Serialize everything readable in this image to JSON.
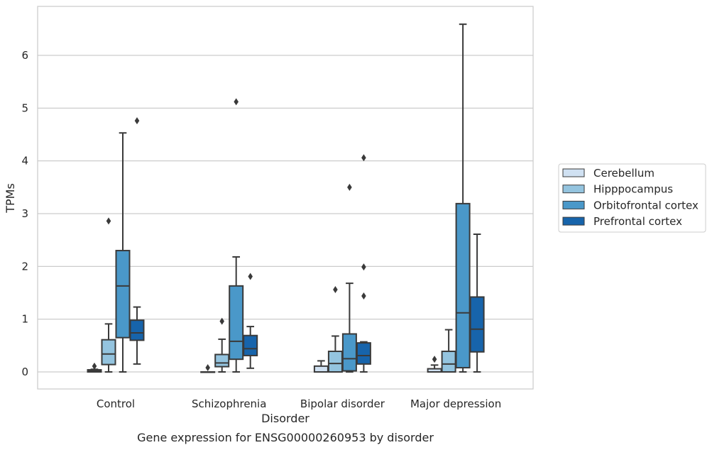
{
  "chart_data": {
    "type": "box",
    "caption": "Gene expression for ENSG00000260953 by disorder",
    "xlabel": "Disorder",
    "ylabel": "TPMs",
    "ylim": [
      -0.32,
      6.9
    ],
    "yticks": [
      0,
      1,
      2,
      3,
      4,
      5,
      6
    ],
    "grid": "horizontal",
    "legend_position": "right",
    "categories": [
      "Control",
      "Schizophrenia",
      "Bipolar disorder",
      "Major depression"
    ],
    "series": [
      {
        "name": "Cerebellum",
        "color": "#d0e1f2",
        "boxes": [
          {
            "whislo": 0.0,
            "q1": 0.0,
            "med": 0.02,
            "q3": 0.04,
            "whishi": 0.05,
            "fliers": [
              0.11
            ]
          },
          {
            "whislo": 0.0,
            "q1": 0.0,
            "med": 0.0,
            "q3": 0.0,
            "whishi": 0.0,
            "fliers": [
              0.08
            ]
          },
          {
            "whislo": 0.0,
            "q1": 0.0,
            "med": 0.0,
            "q3": 0.11,
            "whishi": 0.21,
            "fliers": []
          },
          {
            "whislo": 0.0,
            "q1": 0.0,
            "med": 0.0,
            "q3": 0.06,
            "whishi": 0.13,
            "fliers": [
              0.24
            ]
          }
        ]
      },
      {
        "name": "Hipppocampus",
        "color": "#94c4df",
        "boxes": [
          {
            "whislo": 0.0,
            "q1": 0.14,
            "med": 0.34,
            "q3": 0.61,
            "whishi": 0.91,
            "fliers": [
              2.86
            ]
          },
          {
            "whislo": 0.0,
            "q1": 0.1,
            "med": 0.17,
            "q3": 0.33,
            "whishi": 0.62,
            "fliers": [
              0.96
            ]
          },
          {
            "whislo": 0.0,
            "q1": 0.0,
            "med": 0.16,
            "q3": 0.39,
            "whishi": 0.68,
            "fliers": [
              1.56
            ]
          },
          {
            "whislo": 0.0,
            "q1": 0.0,
            "med": 0.15,
            "q3": 0.39,
            "whishi": 0.8,
            "fliers": []
          }
        ]
      },
      {
        "name": "Orbitofrontal cortex",
        "color": "#4a98c9",
        "boxes": [
          {
            "whislo": 0.0,
            "q1": 0.65,
            "med": 1.63,
            "q3": 2.3,
            "whishi": 4.53,
            "fliers": []
          },
          {
            "whislo": 0.0,
            "q1": 0.24,
            "med": 0.58,
            "q3": 1.63,
            "whishi": 2.18,
            "fliers": [
              5.12
            ]
          },
          {
            "whislo": 0.0,
            "q1": 0.02,
            "med": 0.25,
            "q3": 0.72,
            "whishi": 1.68,
            "fliers": [
              3.5
            ]
          },
          {
            "whislo": 0.0,
            "q1": 0.08,
            "med": 1.12,
            "q3": 3.19,
            "whishi": 6.59,
            "fliers": []
          }
        ]
      },
      {
        "name": "Prefrontal cortex",
        "color": "#1764ab",
        "boxes": [
          {
            "whislo": 0.15,
            "q1": 0.6,
            "med": 0.74,
            "q3": 0.98,
            "whishi": 1.23,
            "fliers": [
              4.76
            ]
          },
          {
            "whislo": 0.07,
            "q1": 0.31,
            "med": 0.44,
            "q3": 0.69,
            "whishi": 0.86,
            "fliers": [
              1.81
            ]
          },
          {
            "whislo": 0.0,
            "q1": 0.15,
            "med": 0.31,
            "q3": 0.55,
            "whishi": 0.57,
            "fliers": [
              1.44,
              1.99,
              4.06
            ]
          },
          {
            "whislo": 0.0,
            "q1": 0.38,
            "med": 0.81,
            "q3": 1.42,
            "whishi": 2.61,
            "fliers": []
          }
        ]
      }
    ]
  }
}
